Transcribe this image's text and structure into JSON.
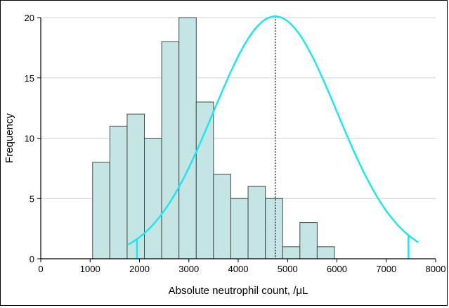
{
  "chart_data": {
    "type": "bar",
    "subtype": "histogram",
    "xlabel": "Absolute neutrophil count, /μL",
    "ylabel": "Frequency",
    "xlim": [
      0,
      8000
    ],
    "ylim": [
      0,
      20
    ],
    "x_ticks": [
      0,
      1000,
      2000,
      3000,
      4000,
      5000,
      6000,
      7000,
      8000
    ],
    "y_ticks": [
      0,
      5,
      10,
      15,
      20
    ],
    "x_tick_labels": [
      "0",
      "1000",
      "2000",
      "3000",
      "4000",
      "5000",
      "6000",
      "7000",
      "8000"
    ],
    "y_tick_labels": [
      "0",
      "5",
      "10",
      "15",
      "20"
    ],
    "grid": "horizontal",
    "bars": [
      {
        "x0": 1050,
        "x1": 1400,
        "count": 8
      },
      {
        "x0": 1400,
        "x1": 1750,
        "count": 11
      },
      {
        "x0": 1750,
        "x1": 2100,
        "count": 12
      },
      {
        "x0": 2100,
        "x1": 2450,
        "count": 10
      },
      {
        "x0": 2450,
        "x1": 2800,
        "count": 18
      },
      {
        "x0": 2800,
        "x1": 3150,
        "count": 20
      },
      {
        "x0": 3150,
        "x1": 3500,
        "count": 13
      },
      {
        "x0": 3500,
        "x1": 3850,
        "count": 7
      },
      {
        "x0": 3850,
        "x1": 4200,
        "count": 5
      },
      {
        "x0": 4200,
        "x1": 4550,
        "count": 6
      },
      {
        "x0": 4550,
        "x1": 4900,
        "count": 5
      },
      {
        "x0": 4900,
        "x1": 5250,
        "count": 1
      },
      {
        "x0": 5250,
        "x1": 5600,
        "count": 3
      },
      {
        "x0": 5600,
        "x1": 5950,
        "count": 1
      }
    ],
    "curve": {
      "type": "normal",
      "mean": 4750,
      "sd": 1250,
      "peak": 20.1,
      "x_start": 1770,
      "x_end": 7650,
      "markers": [
        1950,
        7450
      ]
    },
    "reference_line_x": 4750,
    "colors": {
      "bar_fill": "#c5e4e4",
      "bar_stroke": "#3f4a4a",
      "curve": "#1ee6f0",
      "grid": "#d2d2d2",
      "axis": "#000000",
      "reference_line": "#000000"
    }
  }
}
